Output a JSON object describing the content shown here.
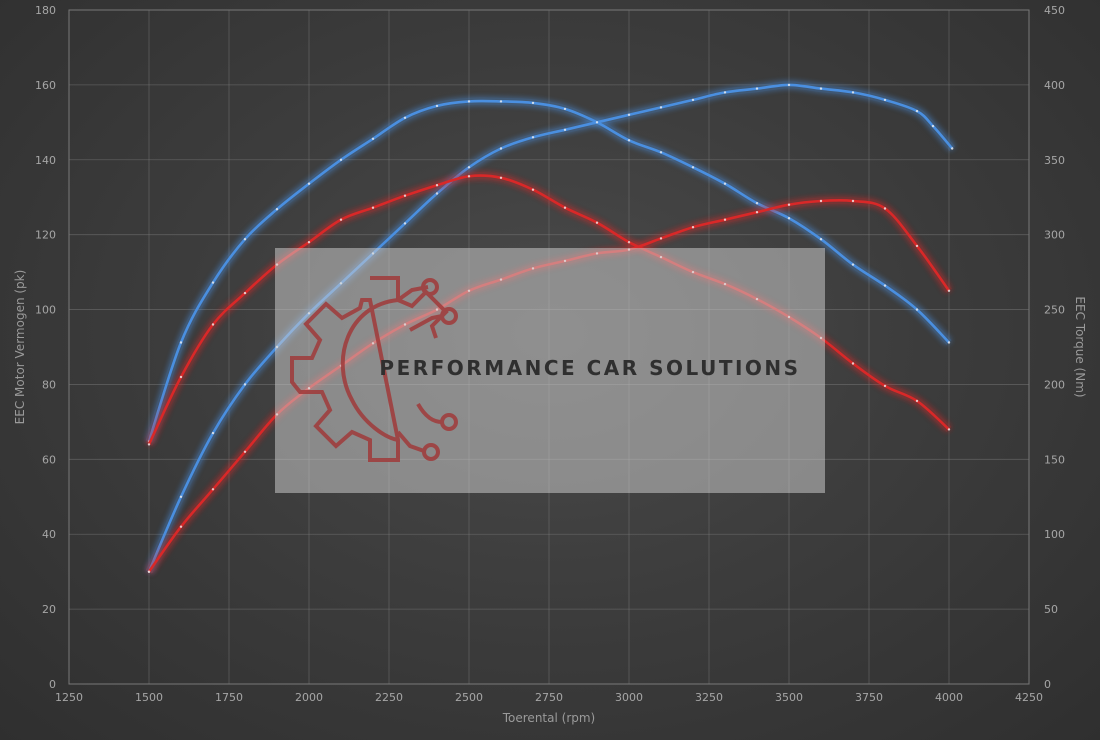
{
  "chart_data": {
    "type": "line",
    "title": "",
    "xlabel": "Toerental (rpm)",
    "ylabel_left": "EEC Motor Vermogen (pk)",
    "ylabel_right": "EEC Torque (Nm)",
    "xlim": [
      1250,
      4250
    ],
    "ylim_left": [
      0,
      180
    ],
    "ylim_right": [
      0,
      450
    ],
    "x_ticks": [
      1250,
      1500,
      1750,
      2000,
      2250,
      2500,
      2750,
      3000,
      3250,
      3500,
      3750,
      4000,
      4250
    ],
    "y_ticks_left": [
      0,
      20,
      40,
      60,
      80,
      100,
      120,
      140,
      160,
      180
    ],
    "y_ticks_right": [
      0,
      50,
      100,
      150,
      200,
      250,
      300,
      350,
      400,
      450
    ],
    "grid": true,
    "legend": "none",
    "series": [
      {
        "axis": "right",
        "color": "#4a8fe0",
        "x": [
          1500,
          1600,
          1700,
          1800,
          1900,
          2000,
          2100,
          2200,
          2300,
          2400,
          2500,
          2600,
          2700,
          2800,
          2900,
          3000,
          3100,
          3200,
          3300,
          3400,
          3500,
          3600,
          3700,
          3800,
          3900,
          4000
        ],
        "y": [
          162,
          228,
          268,
          297,
          317,
          334,
          350,
          364,
          378,
          386,
          389,
          389,
          388,
          384,
          375,
          363,
          355,
          345,
          334,
          321,
          311,
          297,
          280,
          266,
          250,
          228
        ]
      },
      {
        "axis": "left",
        "color": "#4a8fe0",
        "x": [
          1500,
          1600,
          1700,
          1800,
          1900,
          2000,
          2100,
          2200,
          2300,
          2400,
          2500,
          2600,
          2700,
          2800,
          2900,
          3000,
          3100,
          3200,
          3300,
          3400,
          3500,
          3600,
          3700,
          3800,
          3900,
          3950,
          4010
        ],
        "y": [
          30,
          50,
          67,
          80,
          90,
          99,
          107,
          115,
          123,
          131,
          138,
          143,
          146,
          148,
          150,
          152,
          154,
          156,
          158,
          159,
          160,
          159,
          158,
          156,
          153,
          149,
          143
        ]
      },
      {
        "axis": "right",
        "color": "#d92828",
        "x": [
          1500,
          1600,
          1700,
          1800,
          1900,
          2000,
          2100,
          2200,
          2300,
          2400,
          2500,
          2600,
          2700,
          2800,
          2900,
          3000,
          3100,
          3200,
          3300,
          3400,
          3500,
          3600,
          3700,
          3800,
          3900,
          4000
        ],
        "y": [
          160,
          205,
          240,
          261,
          280,
          295,
          310,
          318,
          326,
          333,
          339,
          338,
          330,
          318,
          308,
          295,
          285,
          275,
          267,
          257,
          245,
          231,
          214,
          199,
          189,
          170
        ]
      },
      {
        "axis": "left",
        "color": "#d92828",
        "x": [
          1500,
          1600,
          1700,
          1800,
          1900,
          2000,
          2100,
          2200,
          2300,
          2400,
          2500,
          2600,
          2700,
          2800,
          2900,
          3000,
          3100,
          3200,
          3300,
          3400,
          3500,
          3600,
          3700,
          3800,
          3900,
          4000
        ],
        "y": [
          30,
          42,
          52,
          62,
          72,
          79,
          85,
          91,
          96,
          100,
          105,
          108,
          111,
          113,
          115,
          116,
          119,
          122,
          124,
          126,
          128,
          129,
          129,
          127,
          117,
          105
        ]
      }
    ]
  },
  "watermark": {
    "text": "PERFORMANCE CAR SOLUTIONS",
    "logo_icon": "gear-circuit-icon"
  }
}
